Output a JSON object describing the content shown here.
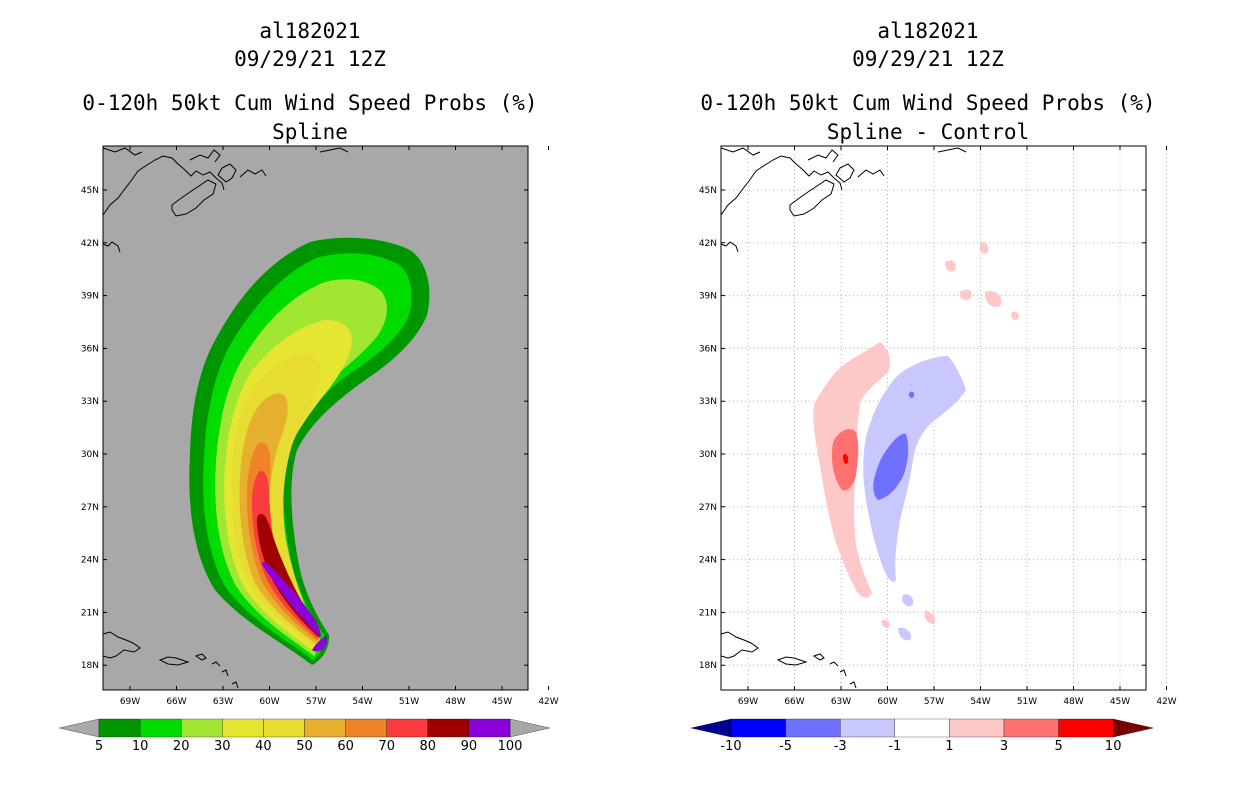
{
  "panels": [
    {
      "storm_id": "al182021",
      "datetime": "09/29/21 12Z",
      "title": "0-120h 50kt Cum Wind Speed Probs (%)",
      "subtitle": "Spline",
      "background_color": "#a8a8a8",
      "colorbar": {
        "levels": [
          "5",
          "10",
          "20",
          "30",
          "40",
          "50",
          "60",
          "70",
          "80",
          "90",
          "100"
        ],
        "colors": [
          "#009600",
          "#00dc00",
          "#a0e632",
          "#e6e632",
          "#e6dc32",
          "#e6af2d",
          "#f08228",
          "#fa3c3c",
          "#a00000",
          "#8c00dc"
        ],
        "under_color": "#a8a8a8",
        "over_color": "#a8a8a8"
      }
    },
    {
      "storm_id": "al182021",
      "datetime": "09/29/21 12Z",
      "title": "0-120h 50kt Cum Wind Speed Probs (%)",
      "subtitle": "Spline - Control",
      "background_color": "#ffffff",
      "colorbar": {
        "levels": [
          "-10",
          "-5",
          "-3",
          "-1",
          "1",
          "3",
          "5",
          "10"
        ],
        "colors": [
          "#0000ff",
          "#7070ff",
          "#c8c8ff",
          "#ffffff",
          "#ffc8c8",
          "#ff7070",
          "#ff0000"
        ],
        "under_color": "#000096",
        "over_color": "#780000"
      }
    }
  ],
  "axes": {
    "lon_labels": [
      "69W",
      "66W",
      "63W",
      "60W",
      "57W",
      "54W",
      "51W",
      "48W",
      "45W",
      "42W"
    ],
    "lat_labels": [
      "45N",
      "42N",
      "39N",
      "36N",
      "33N",
      "30N",
      "27N",
      "24N",
      "21N",
      "18N"
    ]
  }
}
